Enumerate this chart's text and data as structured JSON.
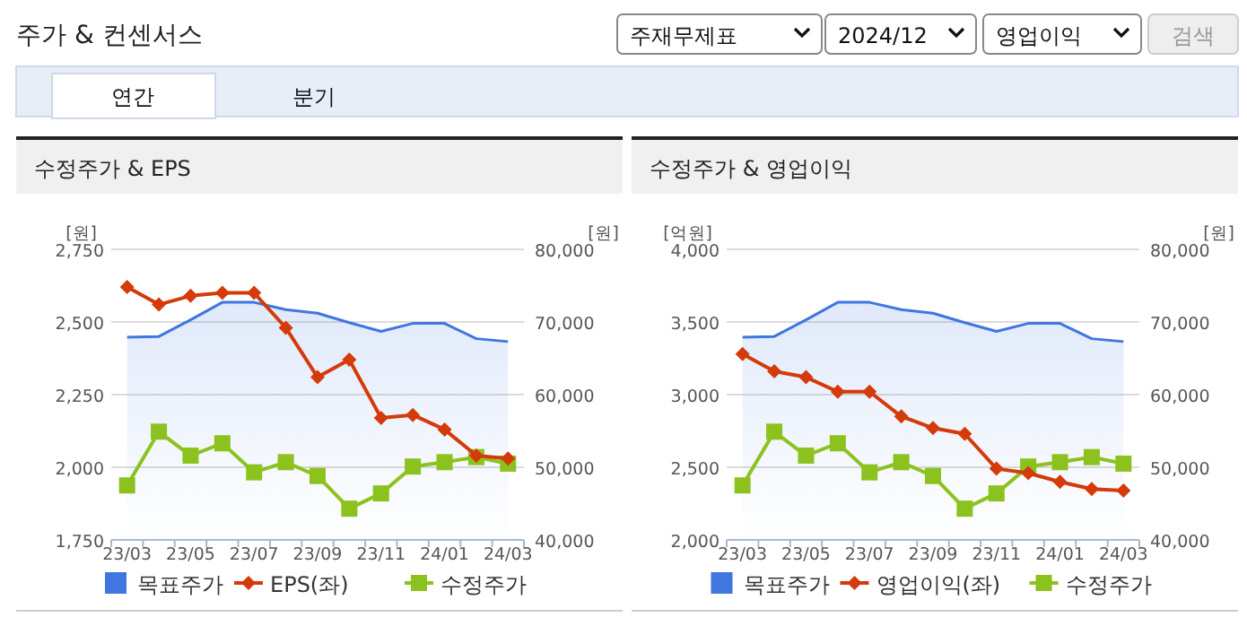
{
  "chart_data": [
    {
      "type": "other",
      "title": "주가 & 컨센서스",
      "annotations": [
        "주재무제표",
        "2024/12",
        "영업이익",
        "검색",
        "연간",
        "분기"
      ]
    },
    {
      "type": "line",
      "title": "수정주가 & EPS",
      "ylabel": "[원]",
      "y2label": "[원]",
      "categories": [
        "23/03",
        null,
        "23/05",
        null,
        "23/07",
        null,
        "23/09",
        null,
        "23/11",
        null,
        "24/01",
        null,
        "24/03"
      ],
      "series": [
        {
          "name": "목표주가",
          "type": "area",
          "axis": "y2",
          "color": "#3f76e0",
          "marker": "none",
          "values": [
            67900,
            68000,
            70300,
            72700,
            72700,
            71700,
            71200,
            69900,
            68700,
            69800,
            69800,
            67700,
            67300
          ]
        },
        {
          "name": "EPS(좌)",
          "type": "line",
          "color": "#d43a0a",
          "marker": "diamond",
          "values": [
            2620,
            2560,
            2590,
            2600,
            2600,
            2480,
            2310,
            2370,
            2170,
            2180,
            2130,
            2040,
            2030
          ]
        },
        {
          "name": "수정주가",
          "type": "line",
          "axis": "y2",
          "color": "#8cc21e",
          "marker": "square",
          "values": [
            47500,
            54900,
            51600,
            53300,
            49300,
            50700,
            48800,
            44300,
            46400,
            50100,
            50700,
            51400,
            50500
          ]
        }
      ],
      "ylim": [
        1750,
        2750
      ],
      "yticks": [
        {
          "value": 1750,
          "label": "1,750"
        },
        {
          "value": 2000,
          "label": "2,000"
        },
        {
          "value": 2250,
          "label": "2,250"
        },
        {
          "value": 2500,
          "label": "2,500"
        },
        {
          "value": 2750,
          "label": "2,750"
        }
      ],
      "y2lim": [
        40000,
        80000
      ],
      "y2ticks": [
        {
          "value": 40000,
          "label": "40,000"
        },
        {
          "value": 50000,
          "label": "50,000"
        },
        {
          "value": 60000,
          "label": "60,000"
        },
        {
          "value": 70000,
          "label": "70,000"
        },
        {
          "value": 80000,
          "label": "80,000"
        }
      ],
      "grid": "y",
      "legend": "bottom"
    },
    {
      "type": "line",
      "title": "수정주가 & 영업이익",
      "ylabel": "[억원]",
      "y2label": "[원]",
      "categories": [
        "23/03",
        null,
        "23/05",
        null,
        "23/07",
        null,
        "23/09",
        null,
        "23/11",
        null,
        "24/01",
        null,
        "24/03"
      ],
      "series": [
        {
          "name": "목표주가",
          "type": "area",
          "axis": "y2",
          "color": "#3f76e0",
          "marker": "none",
          "values": [
            67900,
            68000,
            70300,
            72700,
            72700,
            71700,
            71200,
            69900,
            68700,
            69800,
            69800,
            67700,
            67300
          ]
        },
        {
          "name": "영업이익(좌)",
          "type": "line",
          "color": "#d43a0a",
          "marker": "diamond",
          "values": [
            3280,
            3160,
            3120,
            3020,
            3020,
            2850,
            2770,
            2730,
            2490,
            2460,
            2400,
            2350,
            2340
          ]
        },
        {
          "name": "수정주가",
          "type": "line",
          "axis": "y2",
          "color": "#8cc21e",
          "marker": "square",
          "values": [
            47500,
            54900,
            51600,
            53300,
            49300,
            50700,
            48800,
            44300,
            46400,
            50100,
            50700,
            51400,
            50500
          ]
        }
      ],
      "ylim": [
        2000,
        4000
      ],
      "yticks": [
        {
          "value": 2000,
          "label": "2,000"
        },
        {
          "value": 2500,
          "label": "2,500"
        },
        {
          "value": 3000,
          "label": "3,000"
        },
        {
          "value": 3500,
          "label": "3,500"
        },
        {
          "value": 4000,
          "label": "4,000"
        }
      ],
      "y2lim": [
        40000,
        80000
      ],
      "y2ticks": [
        {
          "value": 40000,
          "label": "40,000"
        },
        {
          "value": 50000,
          "label": "50,000"
        },
        {
          "value": 60000,
          "label": "60,000"
        },
        {
          "value": 70000,
          "label": "70,000"
        },
        {
          "value": 80000,
          "label": "80,000"
        }
      ],
      "grid": "y",
      "legend": "bottom"
    }
  ]
}
